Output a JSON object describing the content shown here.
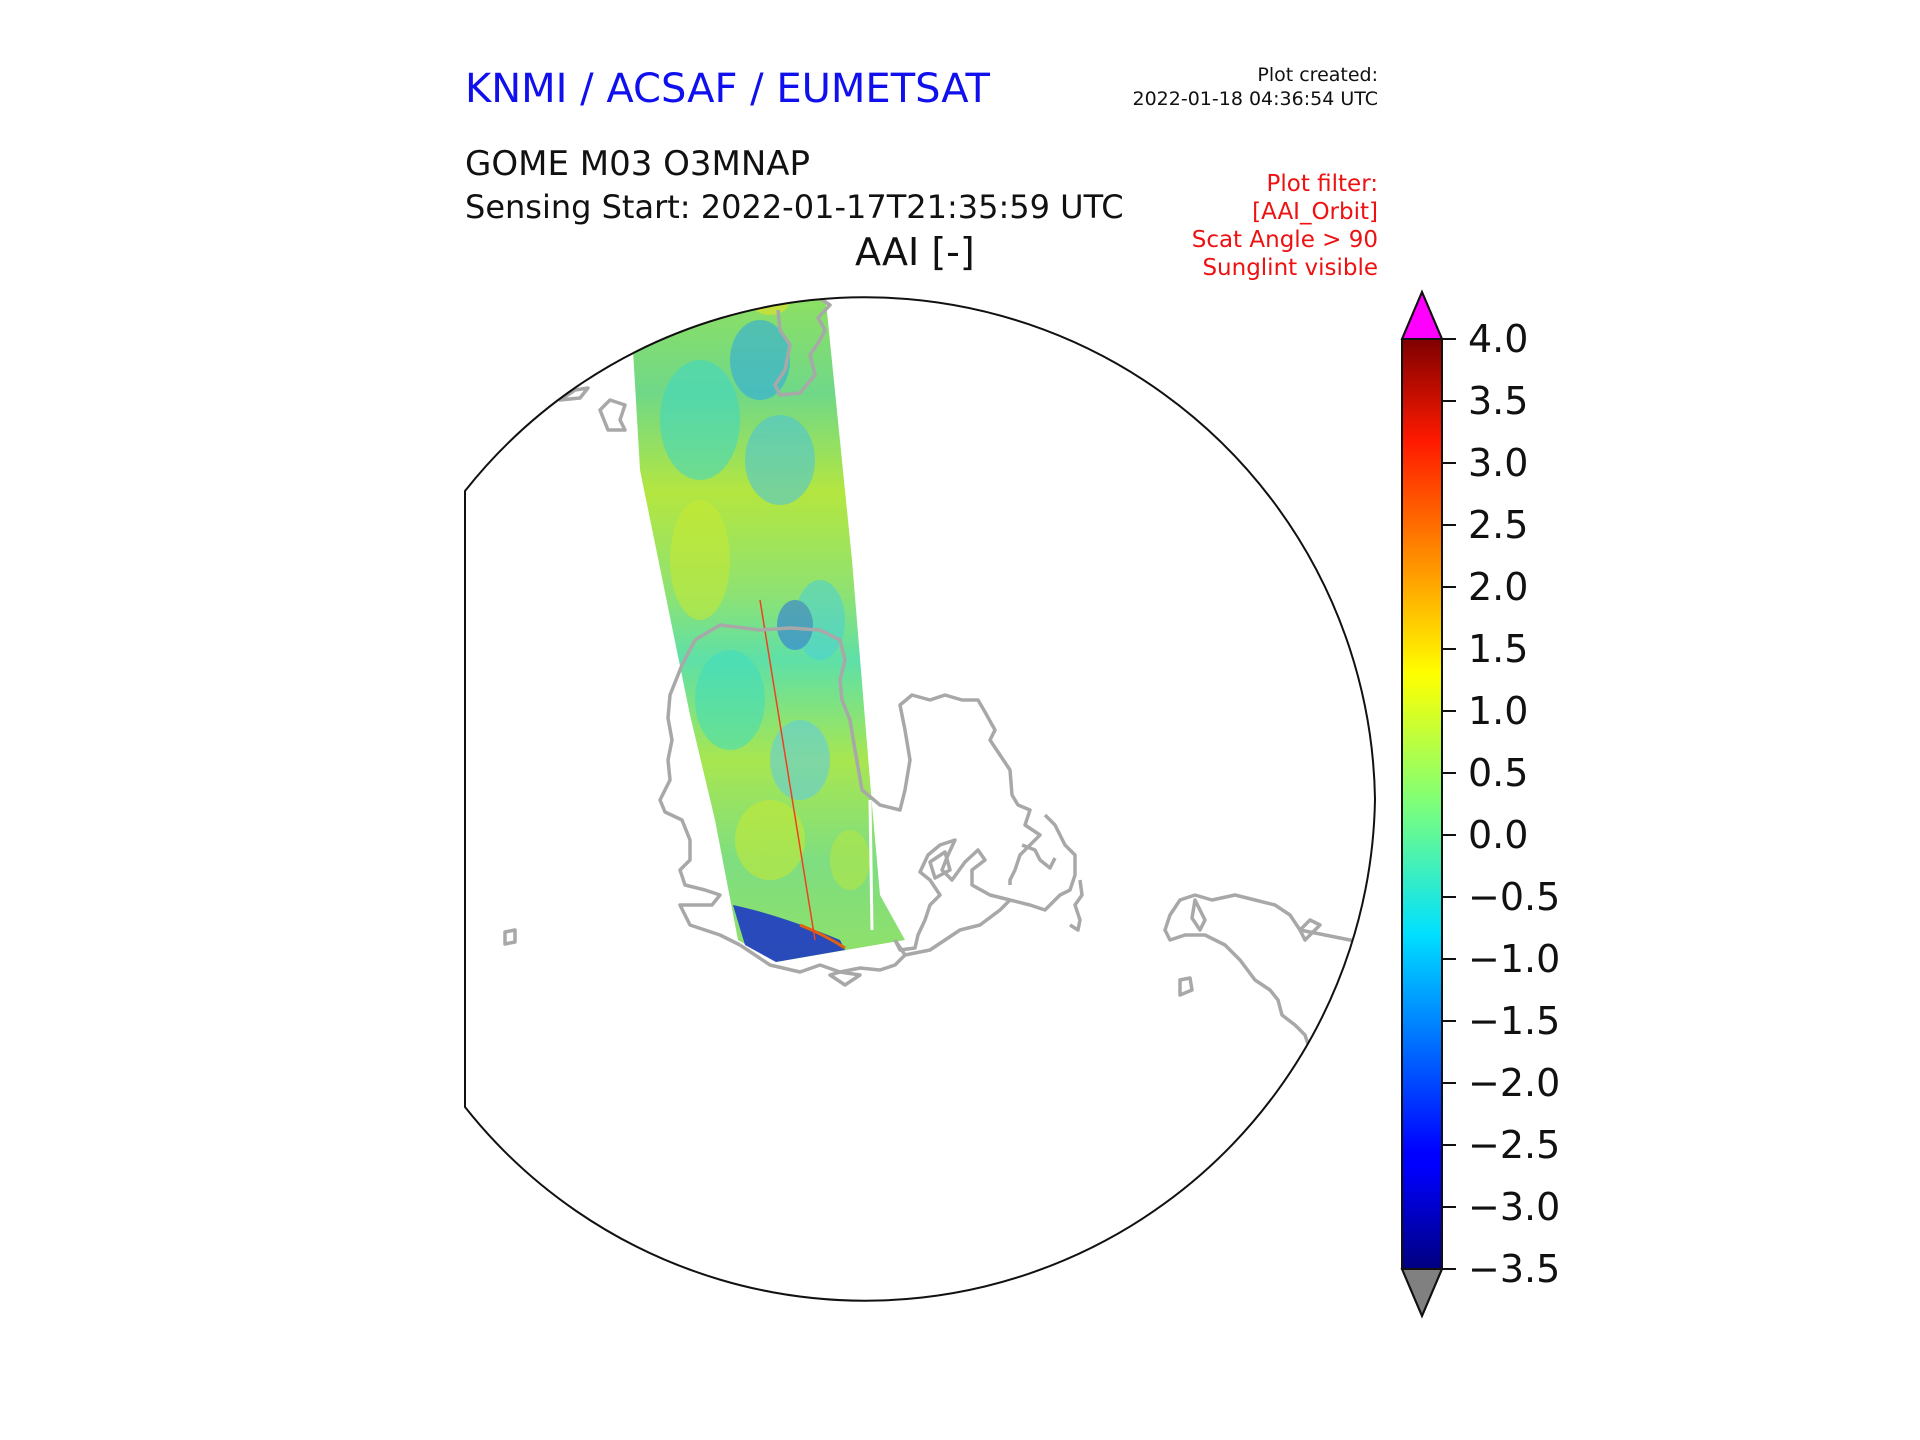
{
  "header": {
    "organisation": "KNMI / ACSAF / EUMETSAT",
    "plot_created_label": "Plot created:",
    "plot_created_time": "2022-01-18 04:36:54 UTC"
  },
  "product": {
    "name": "GOME M03 O3MNAP",
    "sensing_start": "Sensing Start: 2022-01-17T21:35:59 UTC",
    "variable": "AAI [-]"
  },
  "filter": {
    "lines": [
      "Plot filter:",
      "[AAI_Orbit]",
      "Scat Angle > 90",
      "Sunglint visible"
    ]
  },
  "colorbar": {
    "min": -3.5,
    "max": 4.0,
    "ticks": [
      "4.0",
      "3.5",
      "3.0",
      "2.5",
      "2.0",
      "1.5",
      "1.0",
      "0.5",
      "0.0",
      "−0.5",
      "−1.0",
      "−1.5",
      "−2.0",
      "−2.5",
      "−3.0",
      "−3.5"
    ],
    "over_color": "#ff00ff",
    "under_color": "#808080"
  },
  "colors": {
    "title_blue": "#1010ee",
    "filter_red": "#ee1111",
    "coastline": "#a8a8a8"
  }
}
